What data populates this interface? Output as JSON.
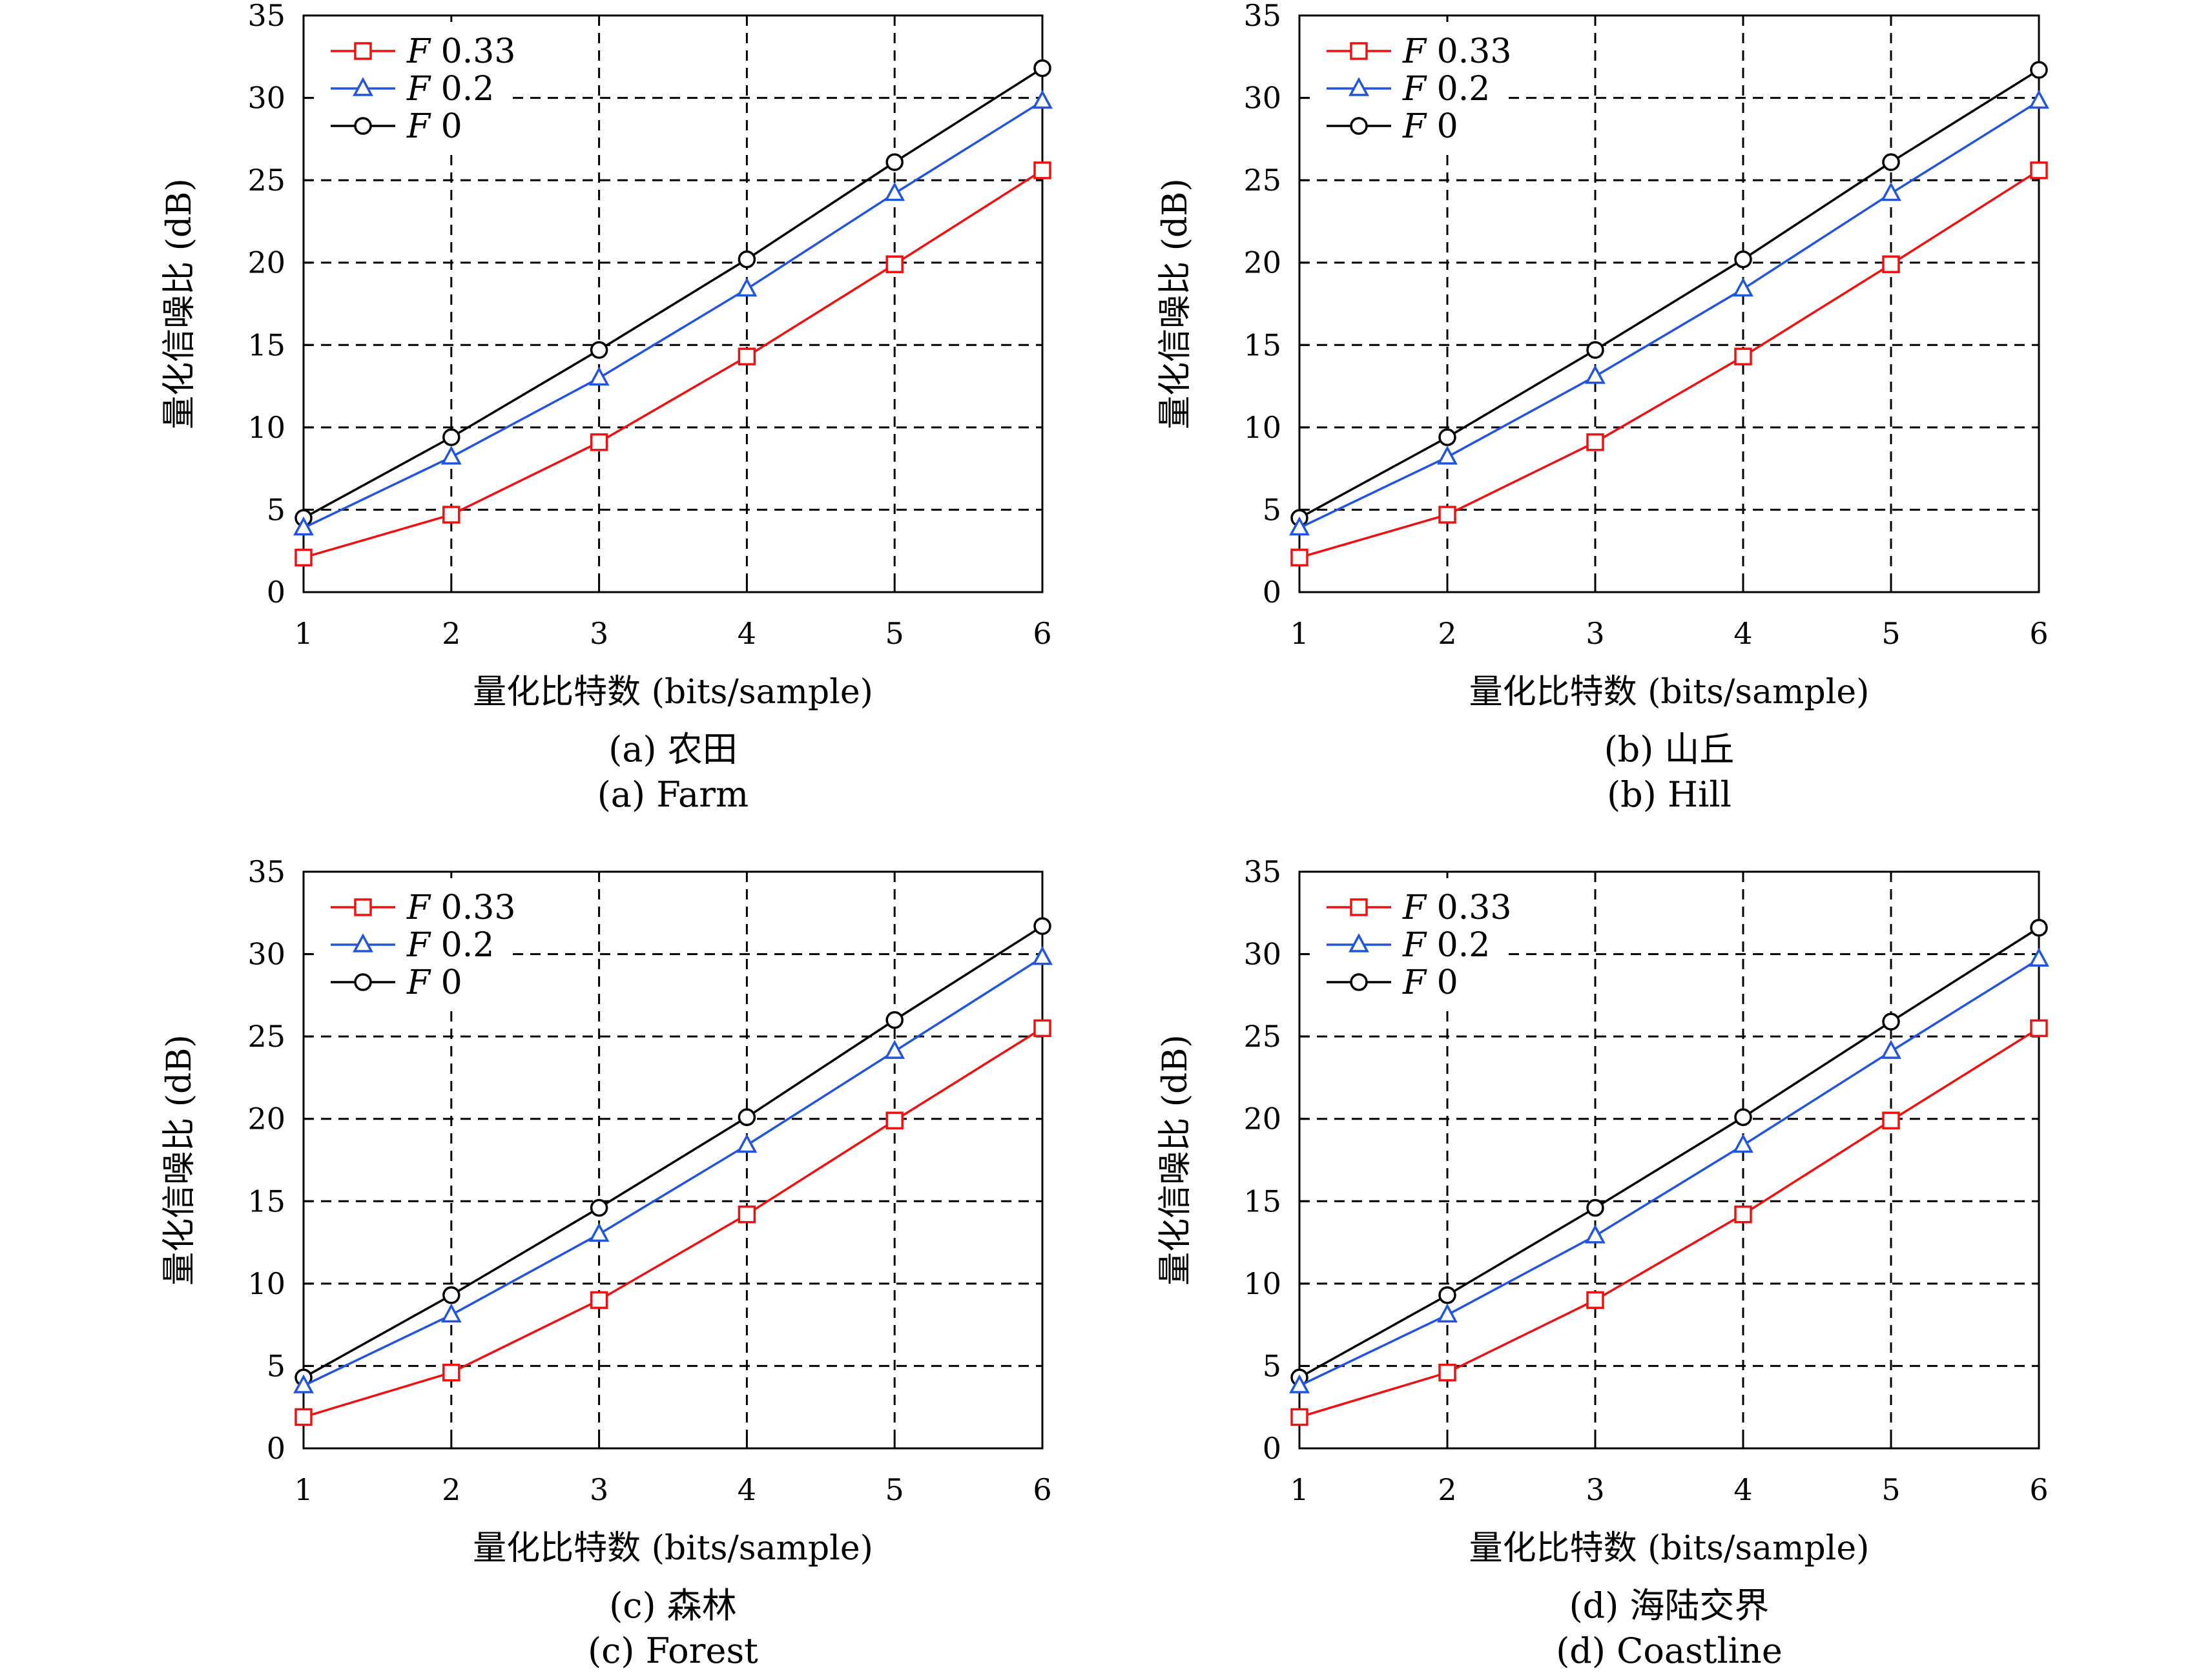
{
  "chart_data": [
    {
      "type": "line",
      "caption_zh": "(a) 农田",
      "caption_en": "(a) Farm",
      "xlabel": "量化比特数 (bits/sample)",
      "ylabel": "量化信噪比 (dB)",
      "x": [
        1,
        2,
        3,
        4,
        5,
        6
      ],
      "xlim": [
        1,
        6
      ],
      "ylim": [
        0,
        35
      ],
      "xticks": [
        "1",
        "2",
        "3",
        "4",
        "5",
        "6"
      ],
      "yticks": [
        "0",
        "5",
        "10",
        "15",
        "20",
        "25",
        "30",
        "35"
      ],
      "grid": true,
      "legend_position": "top-left",
      "series": [
        {
          "name": "F 0.33",
          "italic": "F",
          "rest": " 0.33",
          "color": "#ee1111",
          "marker": "square",
          "values": [
            2.1,
            4.7,
            9.1,
            14.3,
            19.9,
            25.6
          ]
        },
        {
          "name": "F 0.2",
          "italic": "F",
          "rest": " 0.2",
          "color": "#2255dd",
          "marker": "triangle",
          "values": [
            3.9,
            8.2,
            13.0,
            18.4,
            24.2,
            29.8
          ]
        },
        {
          "name": "F 0",
          "italic": "F",
          "rest": " 0",
          "color": "#000000",
          "marker": "circle",
          "values": [
            4.5,
            9.4,
            14.7,
            20.2,
            26.1,
            31.8
          ]
        }
      ]
    },
    {
      "type": "line",
      "caption_zh": "(b) 山丘",
      "caption_en": "(b) Hill",
      "xlabel": "量化比特数 (bits/sample)",
      "ylabel": "量化信噪比 (dB)",
      "x": [
        1,
        2,
        3,
        4,
        5,
        6
      ],
      "xlim": [
        1,
        6
      ],
      "ylim": [
        0,
        35
      ],
      "xticks": [
        "1",
        "2",
        "3",
        "4",
        "5",
        "6"
      ],
      "yticks": [
        "0",
        "5",
        "10",
        "15",
        "20",
        "25",
        "30",
        "35"
      ],
      "grid": true,
      "legend_position": "top-left",
      "series": [
        {
          "name": "F 0.33",
          "italic": "F",
          "rest": " 0.33",
          "color": "#ee1111",
          "marker": "square",
          "values": [
            2.1,
            4.7,
            9.1,
            14.3,
            19.9,
            25.6
          ]
        },
        {
          "name": "F 0.2",
          "italic": "F",
          "rest": " 0.2",
          "color": "#2255dd",
          "marker": "triangle",
          "values": [
            3.9,
            8.2,
            13.1,
            18.4,
            24.2,
            29.8
          ]
        },
        {
          "name": "F 0",
          "italic": "F",
          "rest": " 0",
          "color": "#000000",
          "marker": "circle",
          "values": [
            4.5,
            9.4,
            14.7,
            20.2,
            26.1,
            31.7
          ]
        }
      ]
    },
    {
      "type": "line",
      "caption_zh": "(c) 森林",
      "caption_en": "(c) Forest",
      "xlabel": "量化比特数 (bits/sample)",
      "ylabel": "量化信噪比 (dB)",
      "x": [
        1,
        2,
        3,
        4,
        5,
        6
      ],
      "xlim": [
        1,
        6
      ],
      "ylim": [
        0,
        35
      ],
      "xticks": [
        "1",
        "2",
        "3",
        "4",
        "5",
        "6"
      ],
      "yticks": [
        "0",
        "5",
        "10",
        "15",
        "20",
        "25",
        "30",
        "35"
      ],
      "grid": true,
      "legend_position": "top-left",
      "series": [
        {
          "name": "F 0.33",
          "italic": "F",
          "rest": " 0.33",
          "color": "#ee1111",
          "marker": "square",
          "values": [
            1.9,
            4.6,
            9.0,
            14.2,
            19.9,
            25.5
          ]
        },
        {
          "name": "F 0.2",
          "italic": "F",
          "rest": " 0.2",
          "color": "#2255dd",
          "marker": "triangle",
          "values": [
            3.8,
            8.1,
            13.0,
            18.4,
            24.1,
            29.8
          ]
        },
        {
          "name": "F 0",
          "italic": "F",
          "rest": " 0",
          "color": "#000000",
          "marker": "circle",
          "values": [
            4.3,
            9.3,
            14.6,
            20.1,
            26.0,
            31.7
          ]
        }
      ]
    },
    {
      "type": "line",
      "caption_zh": "(d) 海陆交界",
      "caption_en": "(d) Coastline",
      "xlabel": "量化比特数 (bits/sample)",
      "ylabel": "量化信噪比 (dB)",
      "x": [
        1,
        2,
        3,
        4,
        5,
        6
      ],
      "xlim": [
        1,
        6
      ],
      "ylim": [
        0,
        35
      ],
      "xticks": [
        "1",
        "2",
        "3",
        "4",
        "5",
        "6"
      ],
      "yticks": [
        "0",
        "5",
        "10",
        "15",
        "20",
        "25",
        "30",
        "35"
      ],
      "grid": true,
      "legend_position": "top-left",
      "series": [
        {
          "name": "F 0.33",
          "italic": "F",
          "rest": " 0.33",
          "color": "#ee1111",
          "marker": "square",
          "values": [
            1.9,
            4.6,
            9.0,
            14.2,
            19.9,
            25.5
          ]
        },
        {
          "name": "F 0.2",
          "italic": "F",
          "rest": " 0.2",
          "color": "#2255dd",
          "marker": "triangle",
          "values": [
            3.8,
            8.1,
            12.9,
            18.4,
            24.1,
            29.7
          ]
        },
        {
          "name": "F 0",
          "italic": "F",
          "rest": " 0",
          "color": "#000000",
          "marker": "circle",
          "values": [
            4.3,
            9.3,
            14.6,
            20.1,
            25.9,
            31.6
          ]
        }
      ]
    }
  ]
}
